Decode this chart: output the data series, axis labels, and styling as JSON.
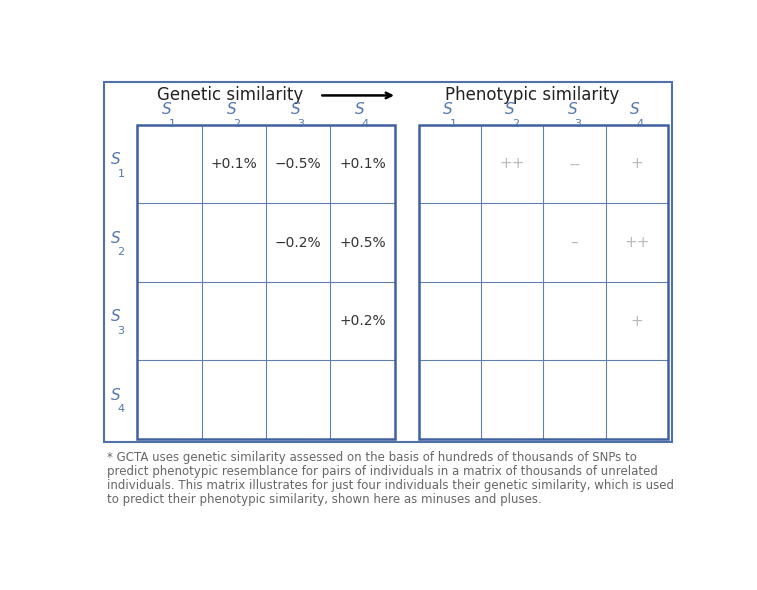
{
  "title_genetic": "Genetic similarity",
  "title_phenotypic": "Phenotypic similarity",
  "col_labels_main": [
    "S",
    "S",
    "S",
    "S"
  ],
  "col_labels_sub": [
    "1",
    "2",
    "3",
    "4"
  ],
  "row_labels_main": [
    "S",
    "S",
    "S",
    "S"
  ],
  "row_labels_sub": [
    "1",
    "2",
    "3",
    "4"
  ],
  "genetic_cells": [
    [
      "",
      "+0.1%",
      "−0.5%",
      "+0.1%"
    ],
    [
      "",
      "",
      "−0.2%",
      "+0.5%"
    ],
    [
      "",
      "",
      "",
      "+0.2%"
    ],
    [
      "",
      "",
      "",
      ""
    ]
  ],
  "phenotypic_cells": [
    [
      "",
      "++",
      "--",
      "+"
    ],
    [
      "",
      "",
      "–",
      "++"
    ],
    [
      "",
      "",
      "",
      "+"
    ],
    [
      "",
      "",
      "",
      ""
    ]
  ],
  "caption_line1": "* GCTA uses genetic similarity assessed on the basis of hundreds of thousands of SNPs to",
  "caption_line2": "predict phenotypic resemblance for pairs of individuals in a matrix of thousands of unrelated",
  "caption_line3": "individuals. This matrix illustrates for just four individuals their genetic similarity, which is used",
  "caption_line4": "to predict their phenotypic similarity, shown here as minuses and pluses.",
  "grid_color": "#6080b0",
  "outer_border_color": "#4060a0",
  "big_border_color": "#5070a8",
  "label_color": "#5577aa",
  "cell_text_color_genetic": "#333333",
  "cell_text_color_phenotypic": "#bbbbbb",
  "bg_color": "#ffffff",
  "title_color": "#222222",
  "caption_color": "#666666"
}
